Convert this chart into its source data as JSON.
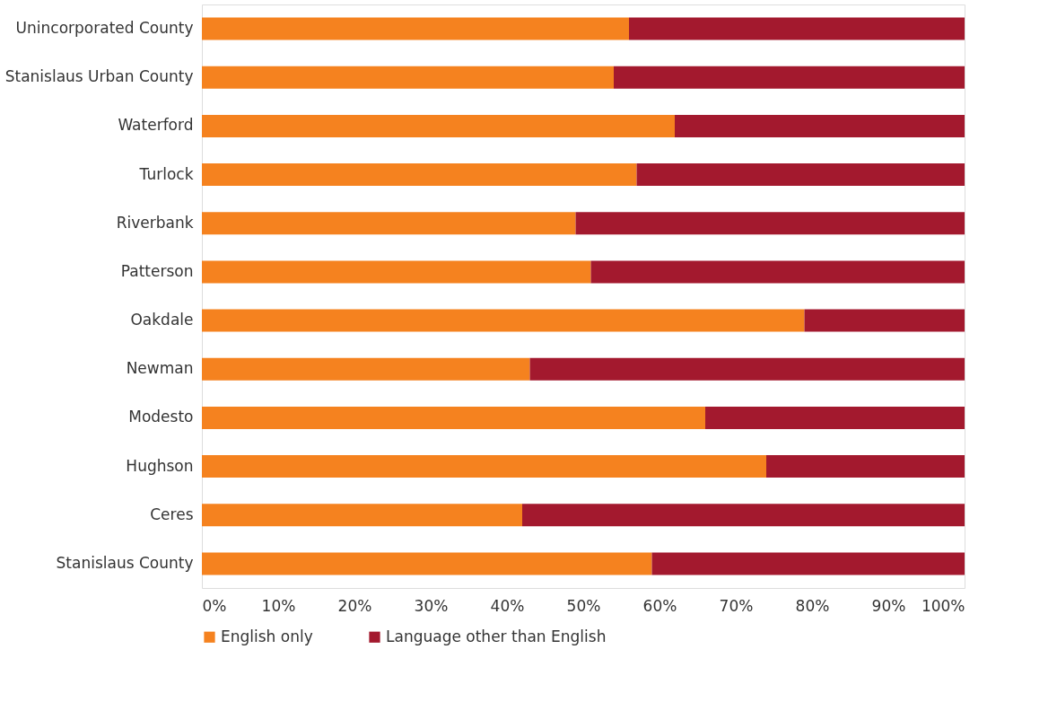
{
  "chart_data": {
    "type": "bar",
    "orientation": "horizontal",
    "stacked": true,
    "categories": [
      "Unincorporated County",
      "Stanislaus Urban County",
      "Waterford",
      "Turlock",
      "Riverbank",
      "Patterson",
      "Oakdale",
      "Newman",
      "Modesto",
      "Hughson",
      "Ceres",
      "Stanislaus County"
    ],
    "series": [
      {
        "name": "English only",
        "color": "#f5821f",
        "values": [
          56,
          54,
          62,
          57,
          49,
          51,
          79,
          43,
          66,
          74,
          42,
          59
        ]
      },
      {
        "name": "Language other than English",
        "color": "#a3192e",
        "values": [
          44,
          46,
          38,
          43,
          51,
          49,
          21,
          57,
          34,
          26,
          58,
          41
        ]
      }
    ],
    "xlim": [
      0,
      100
    ],
    "xticks": [
      {
        "value": 0,
        "label": "0%"
      },
      {
        "value": 10,
        "label": "10%"
      },
      {
        "value": 20,
        "label": "20%"
      },
      {
        "value": 30,
        "label": "30%"
      },
      {
        "value": 40,
        "label": "40%"
      },
      {
        "value": 50,
        "label": "50%"
      },
      {
        "value": 60,
        "label": "60%"
      },
      {
        "value": 70,
        "label": "70%"
      },
      {
        "value": 80,
        "label": "80%"
      },
      {
        "value": 90,
        "label": "90%"
      },
      {
        "value": 100,
        "label": "100%"
      }
    ],
    "grid": false,
    "legend": "bottom"
  }
}
